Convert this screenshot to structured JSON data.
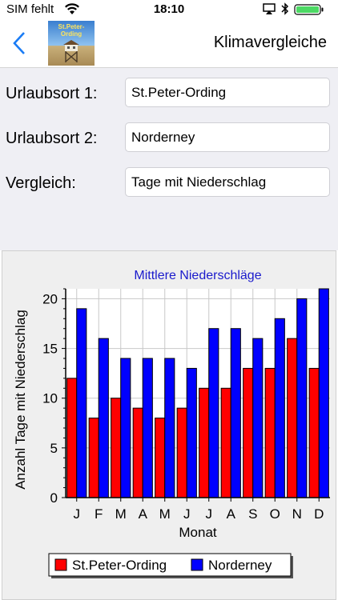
{
  "status": {
    "carrier": "SIM fehlt",
    "time": "18:10"
  },
  "nav": {
    "title": "Klimavergleiche",
    "thumb_title": "St.Peter-Ording"
  },
  "form": {
    "row1_label": "Urlaubsort 1:",
    "row1_value": "St.Peter-Ording",
    "row2_label": "Urlaubsort 2:",
    "row2_value": "Norderney",
    "row3_label": "Vergleich:",
    "row3_value": "Tage mit Niederschlag"
  },
  "colors": {
    "series1": "#ff0000",
    "series2": "#0000ff",
    "title": "#1a1acc"
  },
  "chart_data": {
    "type": "bar",
    "title": "Mittlere Niederschläge",
    "xlabel": "Monat",
    "ylabel": "Anzahl Tage mit Niederschlag",
    "categories": [
      "J",
      "F",
      "M",
      "A",
      "M",
      "J",
      "J",
      "A",
      "S",
      "O",
      "N",
      "D"
    ],
    "ylim": [
      0,
      21
    ],
    "yticks": [
      0,
      5,
      10,
      15,
      20
    ],
    "grid": true,
    "legend": "bottom",
    "series": [
      {
        "name": "St.Peter-Ording",
        "values": [
          12,
          8,
          10,
          9,
          8,
          9,
          11,
          11,
          13,
          13,
          16,
          13
        ]
      },
      {
        "name": "Norderney",
        "values": [
          19,
          16,
          14,
          14,
          14,
          13,
          17,
          17,
          16,
          18,
          20,
          21
        ]
      }
    ]
  }
}
